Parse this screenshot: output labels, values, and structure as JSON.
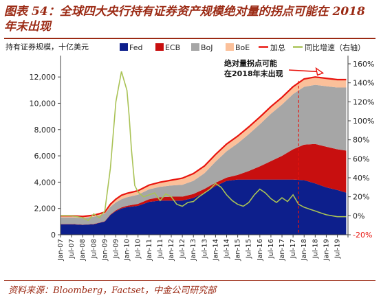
{
  "figure": {
    "title": "图表 54：全球四大央行持有证券资产规模绝对量的拐点可能在 2018 年末出现",
    "source": "资料来源：Bloomberg，Factset，中金公司研究部"
  },
  "chart_data": {
    "type": "area",
    "title": "",
    "ylabel": "持有证券规模，十亿美元",
    "y2label": "",
    "ylim": [
      0,
      13000
    ],
    "y_ticks": [
      "0",
      "2,000",
      "4,000",
      "6,000",
      "8,000",
      "10,000",
      "12,000"
    ],
    "y2lim": [
      -0.2,
      1.6
    ],
    "y2_ticks": [
      "-20%",
      "0%",
      "20%",
      "40%",
      "60%",
      "80%",
      "100%",
      "120%",
      "140%",
      "160%"
    ],
    "x_ticks": [
      "Jan-07",
      "Jul-07",
      "Jan-08",
      "Jul-08",
      "Jan-09",
      "Jul-09",
      "Jan-10",
      "Jul-10",
      "Jan-11",
      "Jul-11",
      "Jan-12",
      "Jul-12",
      "Jan-13",
      "Jul-13",
      "Jan-14",
      "Jul-14",
      "Jan-15",
      "Jul-15",
      "Jan-16",
      "Jul-16",
      "Jan-17",
      "Jul-17",
      "Jan-18",
      "Jul-18",
      "Jan-19",
      "Jul-19"
    ],
    "x": [
      2007.0,
      2007.5,
      2008.0,
      2008.5,
      2008.75,
      2009.0,
      2009.25,
      2009.5,
      2009.75,
      2010.0,
      2010.5,
      2011.0,
      2011.5,
      2012.0,
      2012.5,
      2013.0,
      2013.5,
      2014.0,
      2014.5,
      2015.0,
      2015.5,
      2016.0,
      2016.5,
      2017.0,
      2017.5,
      2018.0,
      2018.5,
      2019.0,
      2019.5,
      2019.9
    ],
    "series": [
      {
        "name": "Fed",
        "type": "area",
        "axis": "left",
        "color": "#0d1f8c",
        "values": [
          800,
          800,
          750,
          800,
          900,
          1000,
          1500,
          1800,
          2000,
          2100,
          2200,
          2500,
          2600,
          2600,
          2600,
          2800,
          3200,
          3700,
          4100,
          4200,
          4200,
          4200,
          4200,
          4200,
          4200,
          4150,
          3900,
          3600,
          3400,
          3200
        ]
      },
      {
        "name": "ECB",
        "type": "area",
        "axis": "left",
        "color": "#c80f0f",
        "values": [
          20,
          20,
          20,
          20,
          20,
          30,
          40,
          60,
          80,
          100,
          150,
          200,
          250,
          300,
          300,
          300,
          280,
          260,
          250,
          350,
          650,
          1000,
          1400,
          1800,
          2300,
          2700,
          3000,
          3100,
          3100,
          3200
        ]
      },
      {
        "name": "BoJ",
        "type": "area",
        "axis": "left",
        "color": "#a6a6a6",
        "values": [
          500,
          500,
          500,
          550,
          560,
          570,
          580,
          600,
          620,
          650,
          700,
          750,
          800,
          850,
          900,
          1000,
          1200,
          1600,
          2000,
          2400,
          2800,
          3200,
          3600,
          3900,
          4200,
          4400,
          4500,
          4600,
          4700,
          4800
        ]
      },
      {
        "name": "BoE",
        "type": "area",
        "axis": "left",
        "color": "#fbc09a",
        "values": [
          120,
          120,
          120,
          120,
          120,
          120,
          200,
          250,
          300,
          300,
          300,
          330,
          350,
          400,
          500,
          550,
          550,
          550,
          550,
          550,
          550,
          550,
          550,
          550,
          560,
          600,
          600,
          600,
          600,
          600
        ]
      },
      {
        "name": "加总",
        "type": "line",
        "axis": "left",
        "color": "#e8140e",
        "values": [
          1440,
          1440,
          1390,
          1490,
          1600,
          1720,
          2320,
          2710,
          3000,
          3150,
          3350,
          3780,
          4000,
          4150,
          4300,
          4650,
          5230,
          6110,
          6900,
          7500,
          8200,
          8950,
          9750,
          10450,
          11260,
          11850,
          12000,
          11900,
          11800,
          11800
        ]
      },
      {
        "name": "同比增速（右轴）",
        "type": "line",
        "axis": "right",
        "color": "#a9c255",
        "x": [
          2007.0,
          2007.5,
          2008.0,
          2008.25,
          2008.5,
          2008.75,
          2009.0,
          2009.25,
          2009.5,
          2009.75,
          2010.0,
          2010.1,
          2010.2,
          2010.35,
          2010.5,
          2010.75,
          2011.0,
          2011.25,
          2011.5,
          2011.75,
          2012.0,
          2012.25,
          2012.5,
          2012.75,
          2013.0,
          2013.25,
          2013.5,
          2013.75,
          2014.0,
          2014.25,
          2014.5,
          2014.75,
          2015.0,
          2015.25,
          2015.5,
          2015.75,
          2016.0,
          2016.25,
          2016.5,
          2016.75,
          2017.0,
          2017.25,
          2017.5,
          2017.75,
          2018.0,
          2018.25,
          2018.5,
          2018.75,
          2019.0,
          2019.25,
          2019.5,
          2019.75,
          2019.9
        ],
        "values": [
          0.0,
          0.0,
          -0.02,
          -0.05,
          0.02,
          -0.02,
          0.05,
          0.5,
          1.2,
          1.52,
          1.32,
          1.05,
          0.7,
          0.32,
          0.25,
          0.2,
          0.22,
          0.24,
          0.16,
          0.23,
          0.2,
          0.12,
          0.1,
          0.14,
          0.15,
          0.2,
          0.24,
          0.28,
          0.34,
          0.3,
          0.22,
          0.16,
          0.12,
          0.1,
          0.14,
          0.22,
          0.28,
          0.24,
          0.18,
          0.14,
          0.19,
          0.15,
          0.22,
          0.12,
          0.09,
          0.07,
          0.05,
          0.03,
          0.01,
          0.0,
          -0.01,
          -0.01,
          -0.01
        ]
      }
    ],
    "annotations": [
      {
        "text_lines": [
          "绝对量拐点可能",
          "在2018年末出现"
        ],
        "arrow_to": {
          "x": 2018.85,
          "y": 12300
        }
      },
      {
        "type": "vertical-dashed-line",
        "x": 2017.75,
        "color": "#e8140e"
      }
    ],
    "legend_placement": "top",
    "grid": false
  }
}
